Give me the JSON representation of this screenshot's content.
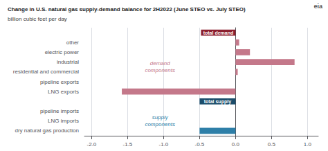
{
  "chart_data": {
    "type": "bar",
    "orientation": "horizontal",
    "title": "Change in U.S. natural gas supply-demand balance for 2H2022 (June STEO vs. July STEO)",
    "subtitle": "billion cubic feet per day",
    "categories": [
      null,
      "other",
      "electric power",
      "industrial",
      "residential and commercial",
      "pipeline exports",
      "LNG exports",
      null,
      "pipeline imports",
      "LNG imports",
      "dry natural gas production"
    ],
    "values": [
      -0.48,
      0.05,
      0.2,
      0.82,
      0.03,
      0.0,
      -1.58,
      -0.5,
      0.0,
      0.0,
      -0.5
    ],
    "colors": [
      "#8B1F2F",
      "#C4788A",
      "#C4788A",
      "#C4788A",
      "#C4788A",
      "#C4788A",
      "#C4788A",
      "#1C4E6B",
      "#2E7FA8",
      "#2E7FA8",
      "#2E7FA8"
    ],
    "xlim": [
      -2.1,
      1.15
    ],
    "xticks": [
      {
        "value": -2.0,
        "label": "-2.0"
      },
      -1.5,
      {
        "value": -1.0,
        "label": "-1.0"
      },
      -0.5,
      {
        "value": 0.0,
        "label": "0.0"
      },
      0.5,
      {
        "value": 1.0,
        "label": "1.0"
      }
    ],
    "grid": true,
    "annotations": [
      {
        "text": "total demand",
        "color": "#ffffff"
      },
      {
        "text": "total supply",
        "color": "#ffffff"
      },
      {
        "text": "demand\ncomponents",
        "color": "#C4788A"
      },
      {
        "text": "supply\ncomponents",
        "color": "#2E7FA8"
      },
      {
        "text": "eia",
        "color": "#555555"
      }
    ]
  }
}
